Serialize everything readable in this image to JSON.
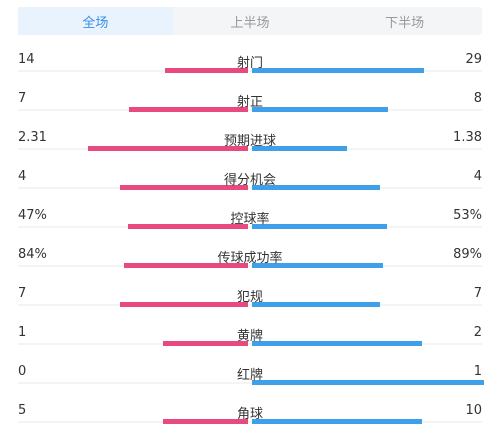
{
  "tabs": [
    {
      "label": "全场",
      "active": true
    },
    {
      "label": "上半场",
      "active": false
    },
    {
      "label": "下半场",
      "active": false
    }
  ],
  "colors": {
    "home": "#e84a7f",
    "away": "#3ea0e8",
    "active_tab": "#3a8ee6"
  },
  "stats": [
    {
      "label": "射门",
      "home": "14",
      "away": "29",
      "home_frac": 0.325,
      "away_frac": 0.675
    },
    {
      "label": "射正",
      "home": "7",
      "away": "8",
      "home_frac": 0.467,
      "away_frac": 0.533
    },
    {
      "label": "预期进球",
      "home": "2.31",
      "away": "1.38",
      "home_frac": 0.626,
      "away_frac": 0.374
    },
    {
      "label": "得分机会",
      "home": "4",
      "away": "4",
      "home_frac": 0.5,
      "away_frac": 0.5
    },
    {
      "label": "控球率",
      "home": "47%",
      "away": "53%",
      "home_frac": 0.47,
      "away_frac": 0.53
    },
    {
      "label": "传球成功率",
      "home": "84%",
      "away": "89%",
      "home_frac": 0.486,
      "away_frac": 0.514
    },
    {
      "label": "犯规",
      "home": "7",
      "away": "7",
      "home_frac": 0.5,
      "away_frac": 0.5
    },
    {
      "label": "黄牌",
      "home": "1",
      "away": "2",
      "home_frac": 0.333,
      "away_frac": 0.667
    },
    {
      "label": "红牌",
      "home": "0",
      "away": "1",
      "home_frac": 0.0,
      "away_frac": 1.0
    },
    {
      "label": "角球",
      "home": "5",
      "away": "10",
      "home_frac": 0.333,
      "away_frac": 0.667
    }
  ]
}
